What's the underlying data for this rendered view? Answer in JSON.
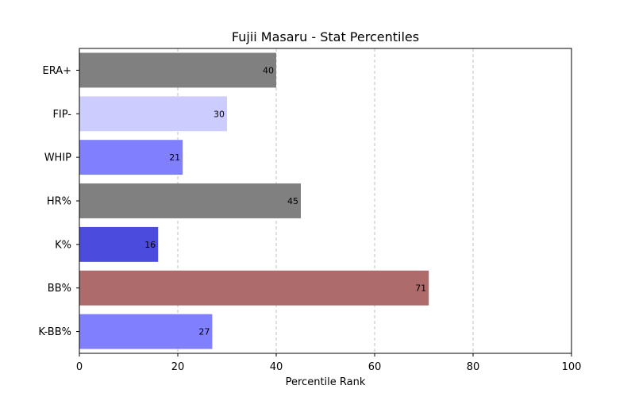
{
  "chart_data": {
    "type": "bar",
    "orientation": "horizontal",
    "title": "Fujii Masaru - Stat Percentiles",
    "xlabel": "Percentile Rank",
    "ylabel": "",
    "xlim": [
      0,
      100
    ],
    "xticks": [
      0,
      20,
      40,
      60,
      80,
      100
    ],
    "grid": "x-dashed",
    "categories": [
      "ERA+",
      "FIP-",
      "WHIP",
      "HR%",
      "K%",
      "BB%",
      "K-BB%"
    ],
    "values": [
      40,
      30,
      21,
      45,
      16,
      71,
      27
    ],
    "colors": [
      "#808080",
      "#ccccff",
      "#8080ff",
      "#808080",
      "#4b4bdd",
      "#ae6b6b",
      "#8080ff"
    ]
  }
}
